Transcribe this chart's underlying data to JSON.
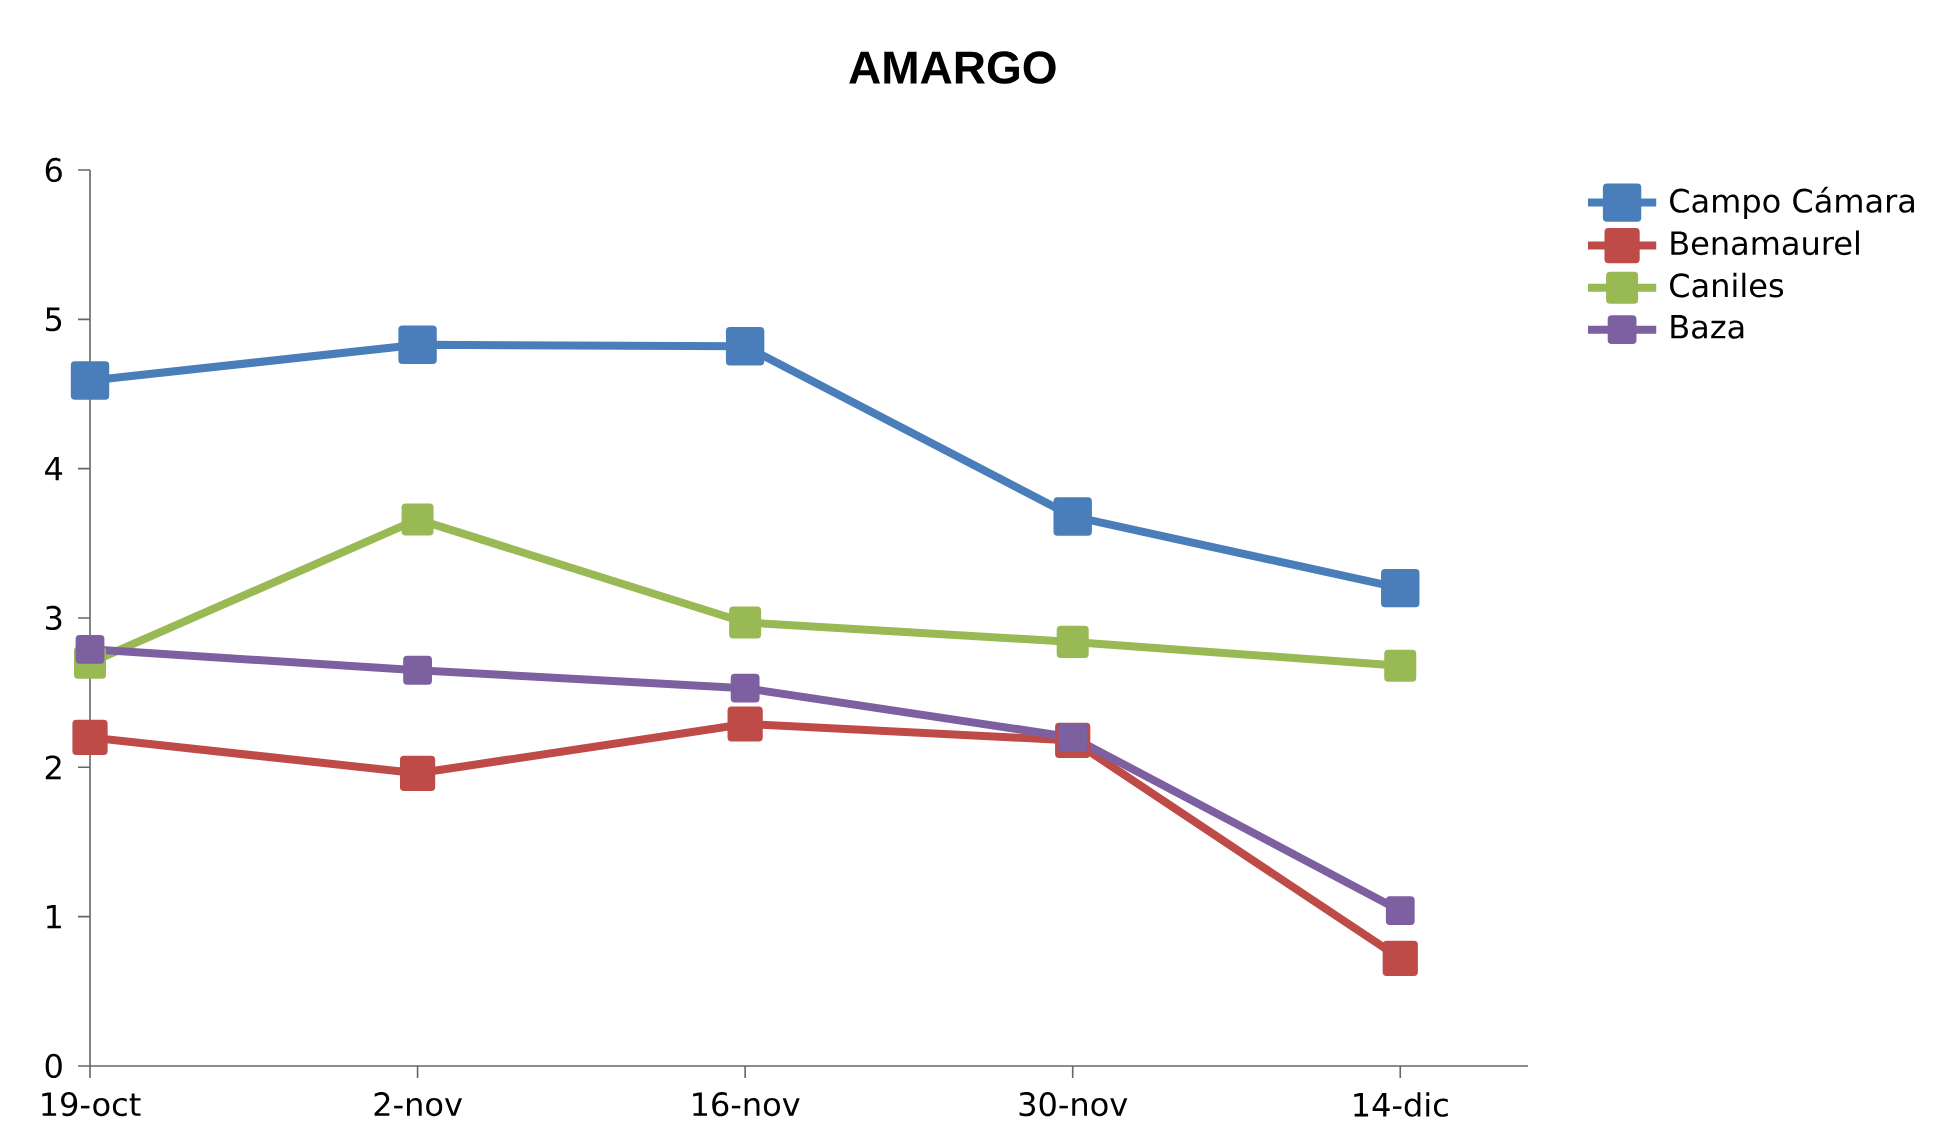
{
  "chart_data": {
    "type": "line",
    "title": "AMARGO",
    "categories": [
      "19-oct",
      "2-nov",
      "16-nov",
      "30-nov",
      "14-dic"
    ],
    "series": [
      {
        "name": "Campo Cámara",
        "color": "#4a7ebb",
        "values": [
          4.59,
          4.83,
          4.82,
          3.68,
          3.2
        ]
      },
      {
        "name": "Benamaurel",
        "color": "#be4b48",
        "values": [
          2.2,
          1.96,
          2.29,
          2.18,
          0.72
        ]
      },
      {
        "name": "Caniles",
        "color": "#98b954",
        "values": [
          2.7,
          3.66,
          2.97,
          2.84,
          2.68
        ]
      },
      {
        "name": "Baza",
        "color": "#7d60a0",
        "values": [
          2.79,
          2.65,
          2.53,
          2.2,
          1.04
        ]
      }
    ],
    "ylim": [
      0,
      6
    ],
    "yticks": [
      0,
      1,
      2,
      3,
      4,
      5,
      6
    ],
    "grid": false,
    "legend": "right",
    "marker": "square",
    "line_style": "solid"
  }
}
